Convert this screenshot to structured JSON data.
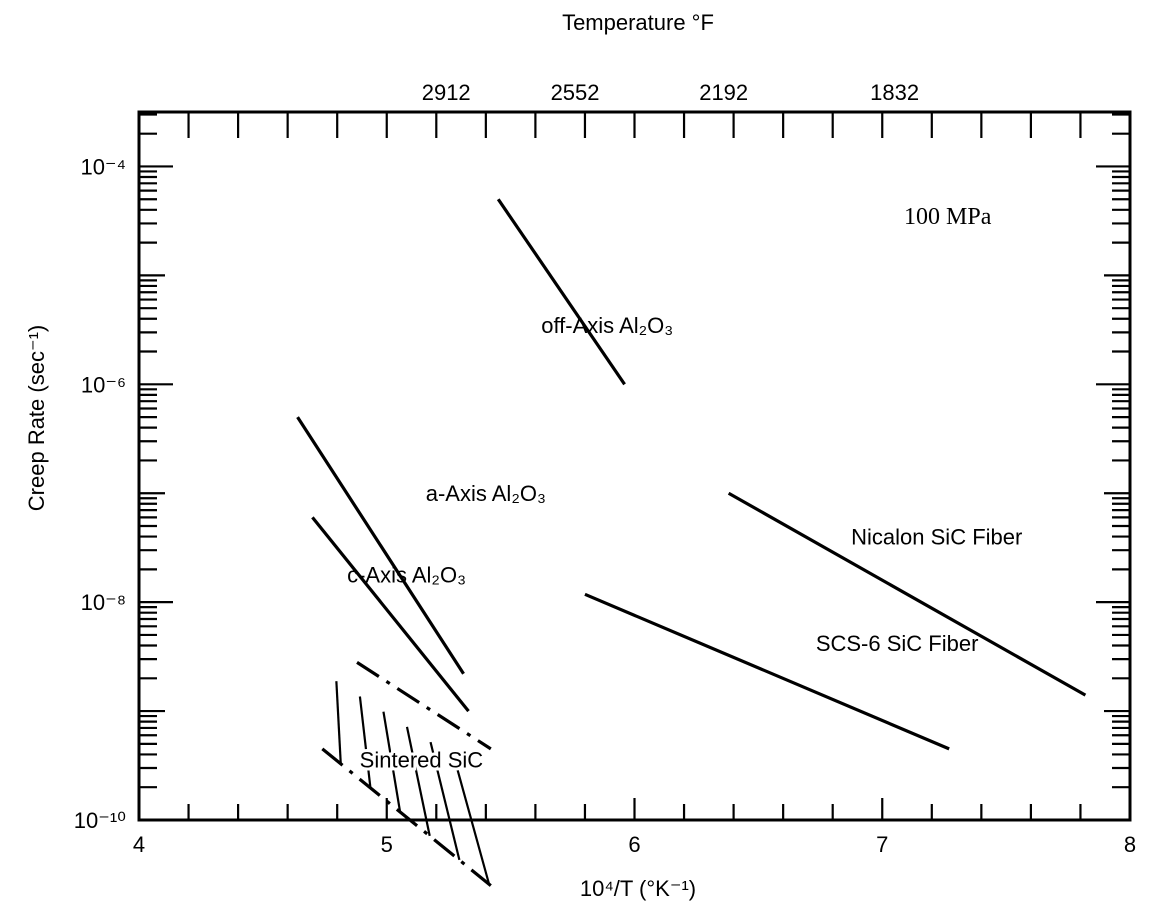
{
  "chart_data": {
    "type": "line",
    "title": "",
    "xlabel": "10⁴/T (°K⁻¹)",
    "ylabel": "Creep Rate (sec⁻¹)",
    "top_axis_label": "Temperature °F",
    "xlim": [
      4,
      8
    ],
    "ylim_log10": [
      -10,
      -3.5
    ],
    "y_scale": "log",
    "x_ticks": [
      "4",
      "5",
      "6",
      "7",
      "8"
    ],
    "y_ticks": [
      {
        "label": "10⁻⁴",
        "value": 0.0001
      },
      {
        "label": "10⁻⁶",
        "value": 1e-06
      },
      {
        "label": "10⁻⁸",
        "value": 1e-08
      },
      {
        "label": "10⁻¹⁰",
        "value": 1e-10
      }
    ],
    "top_ticks": [
      {
        "label": "2912",
        "x": 5.24
      },
      {
        "label": "2552",
        "x": 5.76
      },
      {
        "label": "2192",
        "x": 6.36
      },
      {
        "label": "1832",
        "x": 7.05
      }
    ],
    "condition": "100 MPa",
    "grid": false,
    "legend": "none",
    "series": [
      {
        "name": "off-Axis Al₂O₃",
        "x": [
          5.45,
          5.96
        ],
        "y": [
          5e-05,
          1e-06
        ],
        "label_at": [
          5.89,
          3.5e-06
        ]
      },
      {
        "name": "a-Axis Al₂O₃",
        "x": [
          4.64,
          5.31
        ],
        "y": [
          5e-07,
          2.2e-09
        ],
        "label_at": [
          5.4,
          1e-07
        ]
      },
      {
        "name": "c-Axis Al₂O₃",
        "x": [
          4.7,
          5.33
        ],
        "y": [
          6e-08,
          1e-09
        ],
        "label_at": [
          5.08,
          1.8e-08
        ]
      },
      {
        "name": "Nicalon SiC Fiber",
        "x": [
          6.38,
          7.82
        ],
        "y": [
          1e-07,
          1.4e-09
        ],
        "label_at": [
          7.22,
          4e-08
        ]
      },
      {
        "name": "SCS-6 SiC Fiber",
        "x": [
          5.8,
          7.27
        ],
        "y": [
          1.18e-08,
          4.5e-10
        ],
        "label_at": [
          7.06,
          4.2e-09
        ]
      }
    ],
    "region": {
      "name": "Sintered SiC",
      "label_at": [
        5.14,
        3.6e-10
      ],
      "upper": {
        "x": [
          4.88,
          5.42
        ],
        "y": [
          2.8e-09,
          4.5e-10
        ]
      },
      "lower": {
        "x": [
          4.74,
          5.42
        ],
        "y": [
          4.5e-10,
          2.5e-11
        ]
      }
    }
  }
}
